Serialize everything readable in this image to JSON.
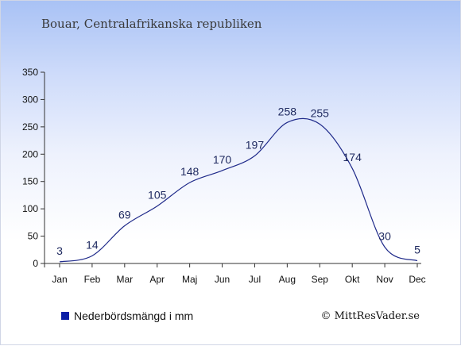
{
  "header": {
    "title": "Bouar, Centralafrikanska republiken"
  },
  "legend": {
    "label": "Nederbördsmängd i mm",
    "color": "#0a1ea6"
  },
  "footer": {
    "copyright": "© MittResVader.se"
  },
  "colors": {
    "line": "#1f2a8a",
    "axis": "#333333"
  },
  "chart_data": {
    "type": "line",
    "categories": [
      "Jan",
      "Feb",
      "Mar",
      "Apr",
      "Maj",
      "Jun",
      "Jul",
      "Aug",
      "Sep",
      "Okt",
      "Nov",
      "Dec"
    ],
    "series": [
      {
        "name": "Nederbördsmängd i mm",
        "values": [
          3,
          14,
          69,
          105,
          148,
          170,
          197,
          258,
          255,
          174,
          30,
          5
        ]
      }
    ],
    "ylim": [
      0,
      350
    ],
    "yticks": [
      0,
      50,
      100,
      150,
      200,
      250,
      300,
      350
    ],
    "grid": false,
    "legend_position": "bottom-left"
  }
}
